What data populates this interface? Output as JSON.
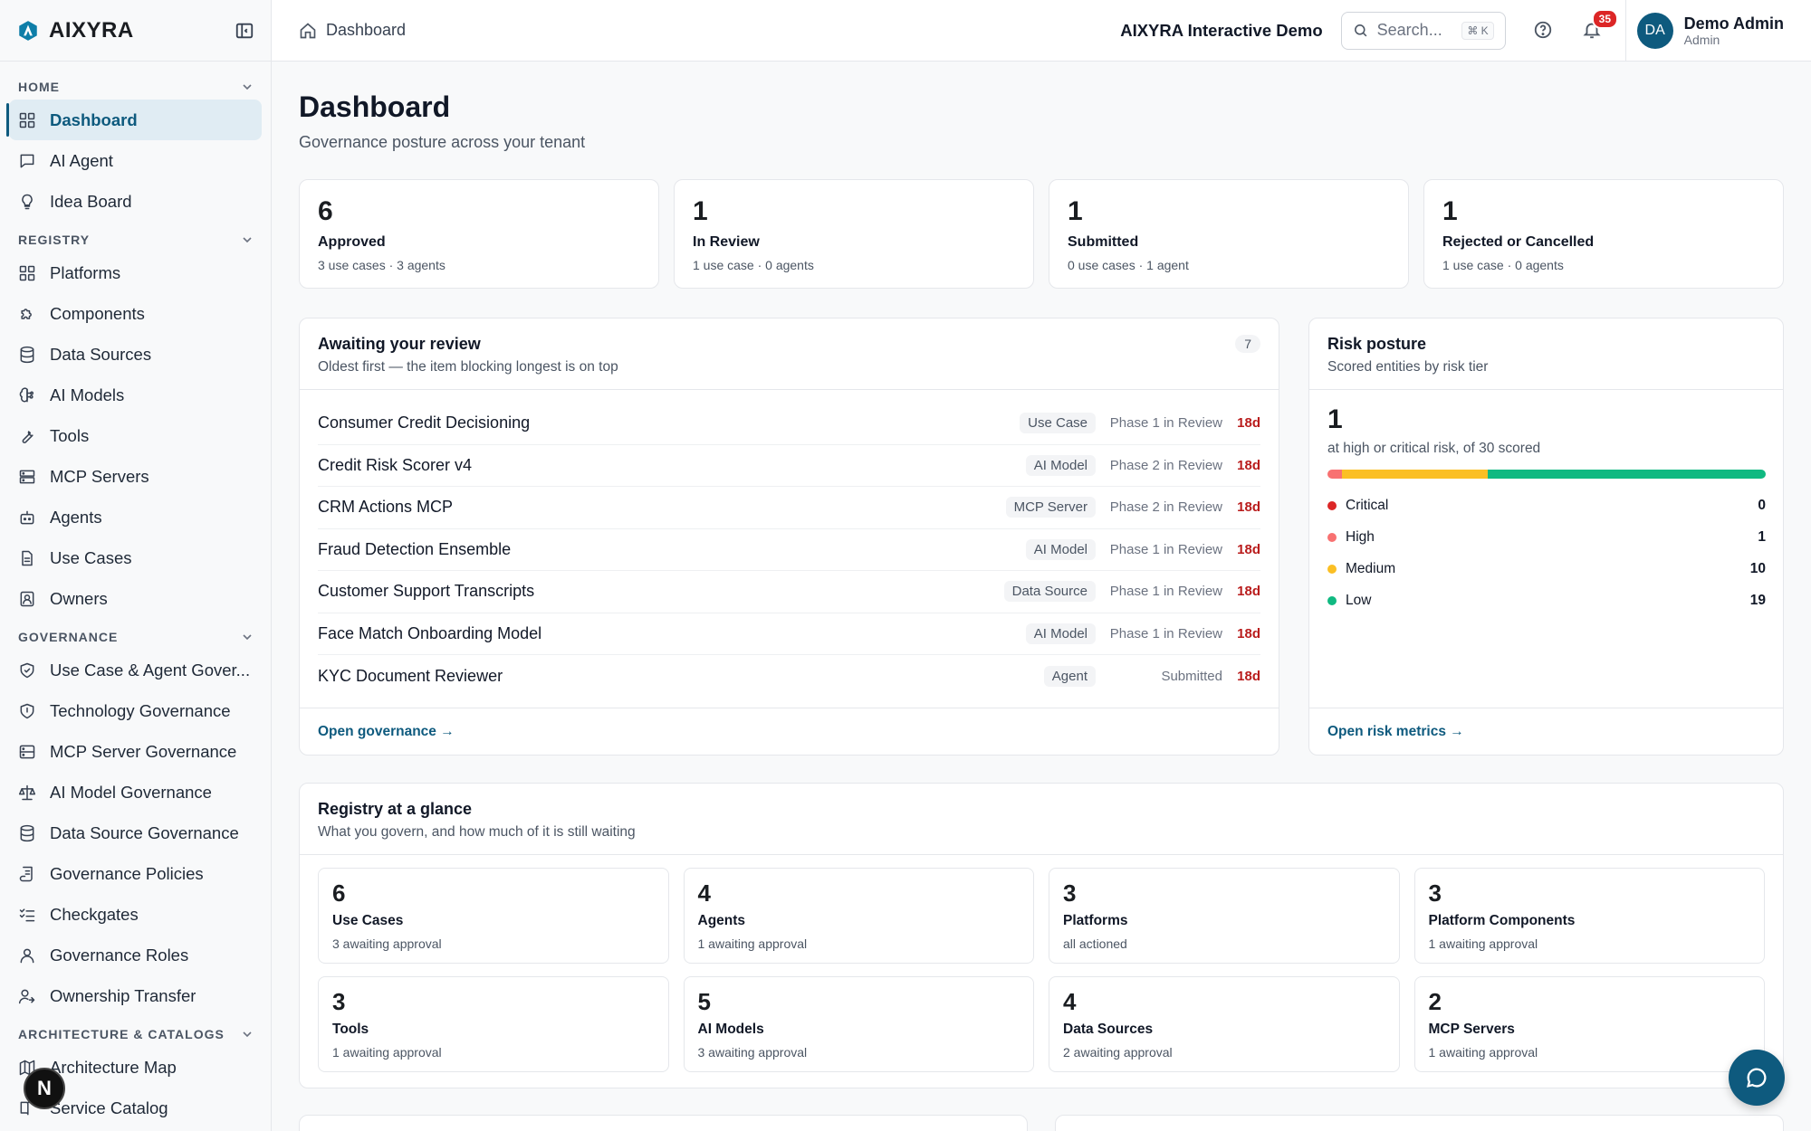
{
  "brand": {
    "name": "AIXYRA"
  },
  "sidebar": {
    "sections": [
      {
        "title": "HOME",
        "items": [
          {
            "label": "Dashboard",
            "icon": "grid-icon",
            "active": true
          },
          {
            "label": "AI Agent",
            "icon": "chat-icon"
          },
          {
            "label": "Idea Board",
            "icon": "lightbulb-icon"
          }
        ]
      },
      {
        "title": "REGISTRY",
        "items": [
          {
            "label": "Platforms",
            "icon": "grid-icon"
          },
          {
            "label": "Components",
            "icon": "puzzle-icon"
          },
          {
            "label": "Data Sources",
            "icon": "database-icon"
          },
          {
            "label": "AI Models",
            "icon": "brain-icon"
          },
          {
            "label": "Tools",
            "icon": "wrench-icon"
          },
          {
            "label": "MCP Servers",
            "icon": "server-icon"
          },
          {
            "label": "Agents",
            "icon": "bot-icon"
          },
          {
            "label": "Use Cases",
            "icon": "document-icon"
          },
          {
            "label": "Owners",
            "icon": "contact-icon"
          }
        ]
      },
      {
        "title": "GOVERNANCE",
        "items": [
          {
            "label": "Use Case & Agent Gover...",
            "icon": "shield-check-icon"
          },
          {
            "label": "Technology Governance",
            "icon": "shield-icon"
          },
          {
            "label": "MCP Server Governance",
            "icon": "server-shield-icon"
          },
          {
            "label": "AI Model Governance",
            "icon": "scale-icon"
          },
          {
            "label": "Data Source Governance",
            "icon": "database-icon"
          },
          {
            "label": "Governance Policies",
            "icon": "scroll-icon"
          },
          {
            "label": "Checkgates",
            "icon": "checklist-icon"
          },
          {
            "label": "Governance Roles",
            "icon": "user-icon"
          },
          {
            "label": "Ownership Transfer",
            "icon": "user-transfer-icon"
          }
        ]
      },
      {
        "title": "ARCHITECTURE & CATALOGS",
        "items": [
          {
            "label": "Architecture Map",
            "icon": "map-icon"
          },
          {
            "label": "Service Catalog",
            "icon": "book-icon"
          }
        ]
      }
    ],
    "floating_badge": "N"
  },
  "topbar": {
    "breadcrumb": "Dashboard",
    "demo_title": "AIXYRA Interactive Demo",
    "search_placeholder": "Search...",
    "search_shortcut": "⌘ K",
    "notifications": "35",
    "user": {
      "initials": "DA",
      "name": "Demo Admin",
      "role": "Admin"
    }
  },
  "page": {
    "title": "Dashboard",
    "subtitle": "Governance posture across your tenant"
  },
  "stats": [
    {
      "value": "6",
      "label": "Approved",
      "sub": "3 use cases · 3 agents"
    },
    {
      "value": "1",
      "label": "In Review",
      "sub": "1 use case · 0 agents"
    },
    {
      "value": "1",
      "label": "Submitted",
      "sub": "0 use cases · 1 agent"
    },
    {
      "value": "1",
      "label": "Rejected or Cancelled",
      "sub": "1 use case · 0 agents"
    }
  ],
  "review": {
    "title": "Awaiting your review",
    "subtitle": "Oldest first — the item blocking longest is on top",
    "count": "7",
    "items": [
      {
        "name": "Consumer Credit Decisioning",
        "type": "Use Case",
        "phase": "Phase 1 in Review",
        "age": "18d"
      },
      {
        "name": "Credit Risk Scorer v4",
        "type": "AI Model",
        "phase": "Phase 2 in Review",
        "age": "18d"
      },
      {
        "name": "CRM Actions MCP",
        "type": "MCP Server",
        "phase": "Phase 2 in Review",
        "age": "18d"
      },
      {
        "name": "Fraud Detection Ensemble",
        "type": "AI Model",
        "phase": "Phase 1 in Review",
        "age": "18d"
      },
      {
        "name": "Customer Support Transcripts",
        "type": "Data Source",
        "phase": "Phase 1 in Review",
        "age": "18d"
      },
      {
        "name": "Face Match Onboarding Model",
        "type": "AI Model",
        "phase": "Phase 1 in Review",
        "age": "18d"
      },
      {
        "name": "KYC Document Reviewer",
        "type": "Agent",
        "phase": "Submitted",
        "age": "18d"
      }
    ],
    "link": "Open governance →"
  },
  "risk": {
    "title": "Risk posture",
    "subtitle": "Scored entities by risk tier",
    "headline": "1",
    "headline_sub": "at high or critical risk, of 30 scored",
    "tiers": [
      {
        "label": "Critical",
        "value": 0,
        "color": "#dc2626"
      },
      {
        "label": "High",
        "value": 1,
        "color": "#f87171"
      },
      {
        "label": "Medium",
        "value": 10,
        "color": "#fbbf24"
      },
      {
        "label": "Low",
        "value": 19,
        "color": "#10b981"
      }
    ],
    "link": "Open risk metrics →"
  },
  "glance": {
    "title": "Registry at a glance",
    "subtitle": "What you govern, and how much of it is still waiting",
    "items": [
      {
        "value": "6",
        "label": "Use Cases",
        "sub": "3 awaiting approval"
      },
      {
        "value": "4",
        "label": "Agents",
        "sub": "1 awaiting approval"
      },
      {
        "value": "3",
        "label": "Platforms",
        "sub": "all actioned"
      },
      {
        "value": "3",
        "label": "Platform Components",
        "sub": "1 awaiting approval"
      },
      {
        "value": "3",
        "label": "Tools",
        "sub": "1 awaiting approval"
      },
      {
        "value": "5",
        "label": "AI Models",
        "sub": "3 awaiting approval"
      },
      {
        "value": "4",
        "label": "Data Sources",
        "sub": "2 awaiting approval"
      },
      {
        "value": "2",
        "label": "MCP Servers",
        "sub": "1 awaiting approval"
      }
    ]
  },
  "colors": {
    "accent": "#0e5a7e",
    "danger": "#b91c1c"
  }
}
